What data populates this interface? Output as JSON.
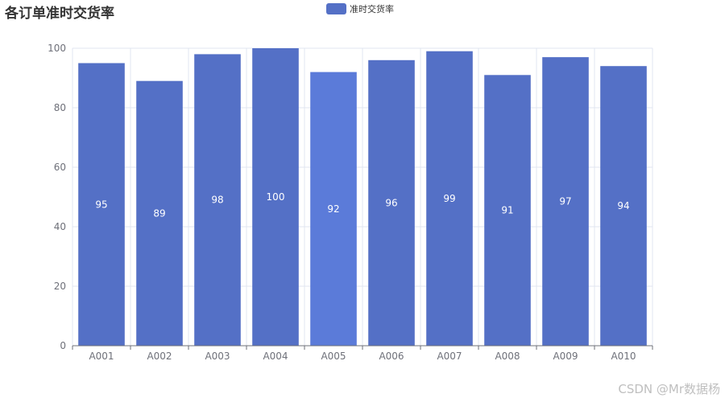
{
  "chart_data": {
    "type": "bar",
    "title": "各订单准时交货率",
    "categories": [
      "A001",
      "A002",
      "A003",
      "A004",
      "A005",
      "A006",
      "A007",
      "A008",
      "A009",
      "A010"
    ],
    "series": [
      {
        "name": "准时交货率",
        "values": [
          95,
          89,
          98,
          100,
          92,
          96,
          99,
          91,
          97,
          94
        ]
      }
    ],
    "ylim": [
      0,
      100
    ],
    "yticks": [
      0,
      20,
      40,
      60,
      80,
      100
    ],
    "grid": true,
    "legend_position": "top-center",
    "colors": {
      "bar": "#5470c6",
      "bar_highlight": "#5b7bd9",
      "label": "#ffffff",
      "axis": "#6e7079",
      "grid": "#e0e6f1"
    },
    "highlighted_index": 4
  },
  "watermark": "CSDN @Mr数据杨"
}
